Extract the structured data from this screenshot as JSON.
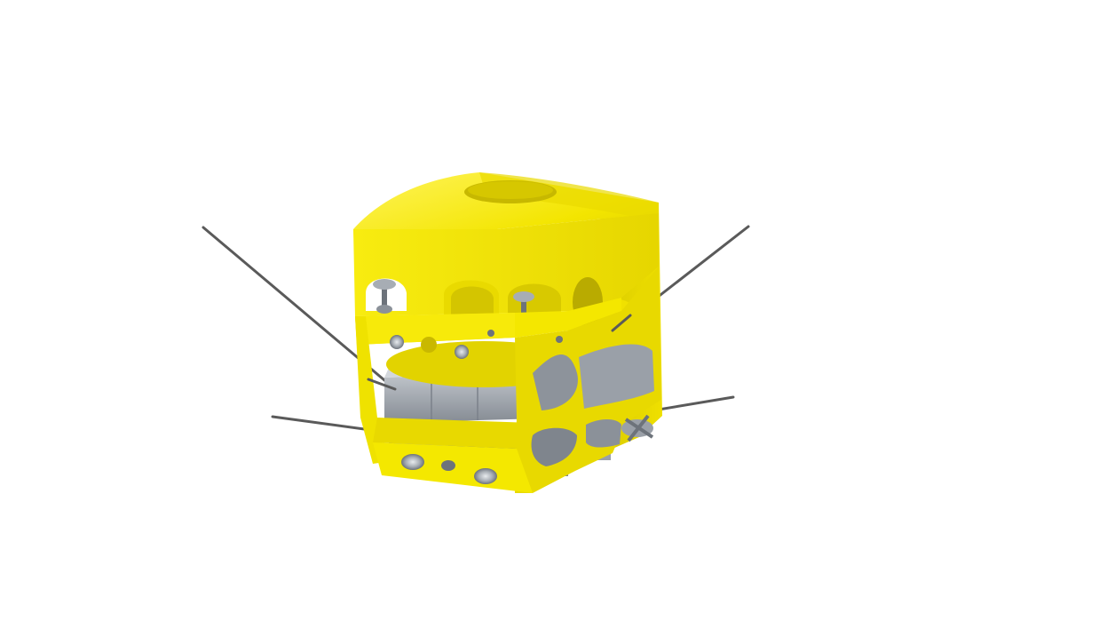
{
  "scene": {
    "subject": "yellow-rov-render",
    "colors": {
      "background": "#ffffff",
      "hull_yellow": "#f2e600",
      "hull_yellow_light": "#fff23a",
      "hull_yellow_shadow": "#c9b800",
      "hull_yellow_dark": "#a89a00",
      "component_grey": "#9aa0a8",
      "component_grey_light": "#c3c8ce",
      "component_grey_dark": "#6d737b",
      "rod_grey": "#5a5a5a"
    }
  }
}
